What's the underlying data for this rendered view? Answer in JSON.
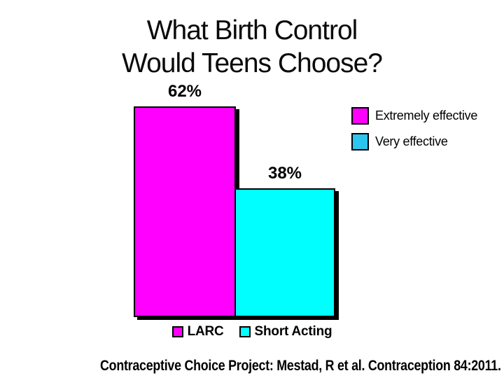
{
  "slide": {
    "title_line1": "What Birth Control",
    "title_line2": "Would Teens Choose?",
    "footer": "Contraceptive Choice Project: Mestad, R et al. Contraception 84:2011."
  },
  "colors": {
    "magenta": "#FF00FF",
    "bar_cyan": "#00FFFF",
    "legend_cyan": "#2CC5EF",
    "outline_black": "#000000",
    "background": "#FFFFFF"
  },
  "chart_data": {
    "type": "bar",
    "title": "What Birth Control Would Teens Choose?",
    "categories": [
      "LARC",
      "Short Acting"
    ],
    "values": [
      62,
      38
    ],
    "value_labels": [
      "62%",
      "38%"
    ],
    "bar_colors": [
      "#FF00FF",
      "#00FFFF"
    ],
    "xlabel": "",
    "ylabel": "",
    "ylim": [
      0,
      68
    ],
    "grid": false,
    "axes_visible": false,
    "legend_position": "right",
    "effectiveness_legend": [
      {
        "label": "Extremely effective",
        "color": "#FF00FF"
      },
      {
        "label": "Very effective",
        "color": "#2CC5EF"
      }
    ],
    "category_legend": [
      {
        "label": "LARC",
        "color": "#FF00FF"
      },
      {
        "label": "Short Acting",
        "color": "#00FFFF"
      }
    ]
  }
}
